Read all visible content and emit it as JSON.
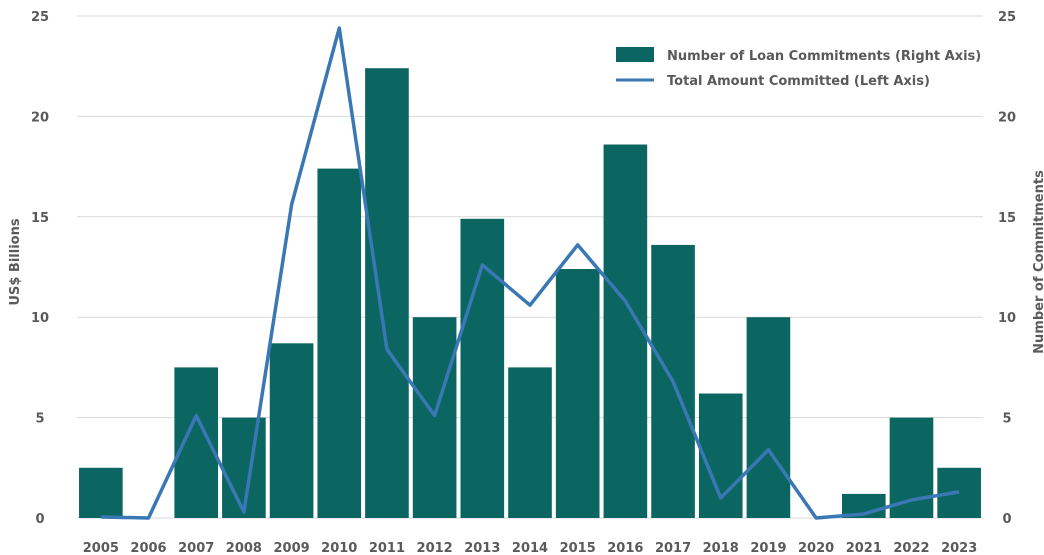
{
  "chart_data": {
    "type": "bar",
    "categories": [
      "2005",
      "2006",
      "2007",
      "2008",
      "2009",
      "2010",
      "2011",
      "2012",
      "2013",
      "2014",
      "2015",
      "2016",
      "2017",
      "2018",
      "2019",
      "2020",
      "2021",
      "2022",
      "2023"
    ],
    "series": [
      {
        "name": "Number of Loan Commitments (Right Axis)",
        "type": "bar",
        "axis": "right",
        "color": "#0b6661",
        "values": [
          2.5,
          0,
          7.5,
          5,
          8.7,
          17.4,
          22.4,
          10,
          14.9,
          7.5,
          12.4,
          18.6,
          13.6,
          6.2,
          10,
          0,
          1.2,
          5,
          2.5
        ]
      },
      {
        "name": "Total Amount Committed (Left Axis)",
        "type": "line",
        "axis": "left",
        "color": "#3a78b5",
        "values": [
          0.05,
          0,
          5.1,
          0.3,
          15.6,
          24.4,
          8.4,
          5.1,
          12.6,
          10.6,
          13.6,
          10.8,
          6.8,
          1.0,
          3.4,
          0,
          0.2,
          0.9,
          1.3
        ]
      }
    ],
    "ylabel": "US$ Billions",
    "y2label": "Number of Commitments",
    "ylim": [
      0,
      25
    ],
    "y2lim": [
      0,
      25
    ],
    "yticks": [
      "0",
      "5",
      "10",
      "15",
      "20",
      "25"
    ],
    "y2ticks": [
      "0",
      "5",
      "10",
      "15",
      "20",
      "25"
    ],
    "grid": true,
    "legend_position": "top-right"
  }
}
